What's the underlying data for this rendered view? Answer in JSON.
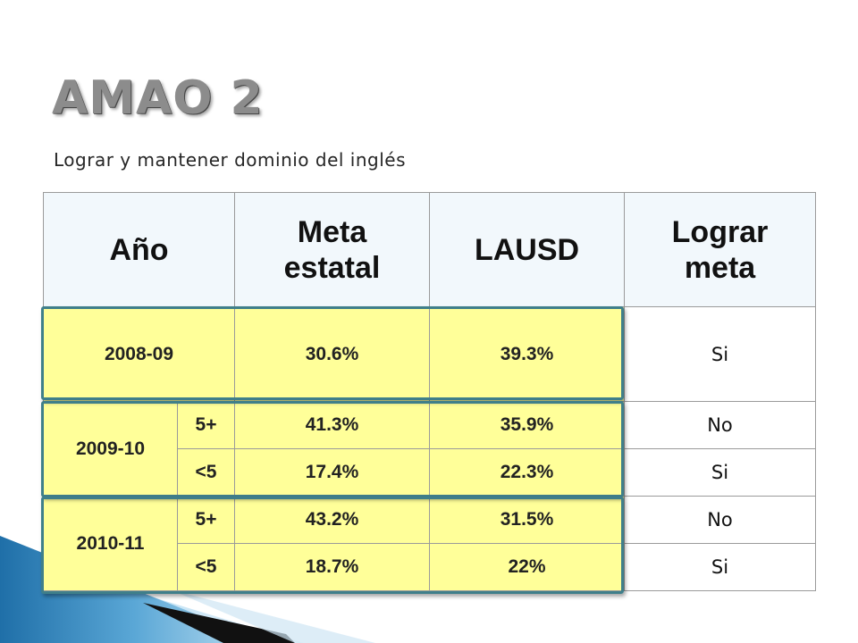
{
  "title": "AMAO 2",
  "subtitle": "Lograr y mantener dominio del inglés",
  "colors": {
    "header_bg": "#f2f8fc",
    "highlight_bg": "#ffff99",
    "group_border": "#3f7f8a",
    "title_gray": "#8c8c8c"
  },
  "table": {
    "headers": {
      "year": "Año",
      "state_goal": "Meta estatal",
      "lausd": "LAUSD",
      "goal_met": "Lograr meta"
    },
    "rows": [
      {
        "year": "2008-09",
        "state_goal": "30.6%",
        "lausd": "39.3%",
        "goal_met": "Si"
      },
      {
        "year": "2009-10",
        "sub": "5+",
        "state_goal": "41.3%",
        "lausd": "35.9%",
        "goal_met": "No"
      },
      {
        "sub": "<5",
        "state_goal": "17.4%",
        "lausd": "22.3%",
        "goal_met": "Si"
      },
      {
        "year": "2010-11",
        "sub": "5+",
        "state_goal": "43.2%",
        "lausd": "31.5%",
        "goal_met": "No"
      },
      {
        "sub": "<5",
        "state_goal": "18.7%",
        "lausd": "22%",
        "goal_met": "Si"
      }
    ]
  }
}
